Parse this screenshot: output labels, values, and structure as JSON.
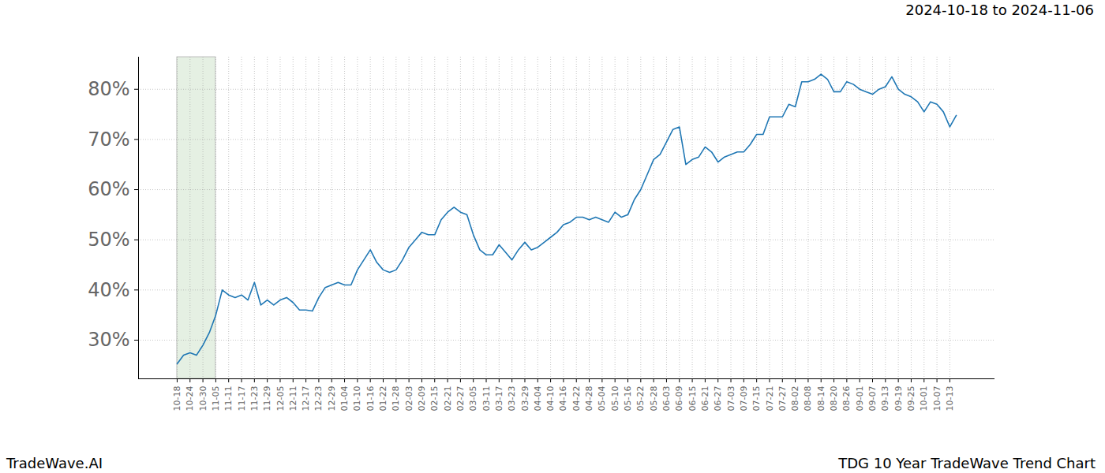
{
  "chart_data": {
    "type": "line",
    "title": "2024-10-18 to 2024-11-06",
    "footer_left": "TradeWave.AI",
    "footer_right": "TDG 10 Year TradeWave Trend Chart",
    "categories": [
      "10-18",
      null,
      "10-24",
      null,
      "10-30",
      null,
      "11-05",
      null,
      "11-11",
      null,
      "11-17",
      null,
      "11-23",
      null,
      "11-29",
      null,
      "12-05",
      null,
      "12-11",
      null,
      "12-17",
      null,
      "12-23",
      null,
      "12-29",
      null,
      "01-04",
      null,
      "01-10",
      null,
      "01-16",
      null,
      "01-22",
      null,
      "01-28",
      null,
      "02-03",
      null,
      "02-09",
      null,
      "02-15",
      null,
      "02-21",
      null,
      "02-27",
      null,
      "03-05",
      null,
      "03-11",
      null,
      "03-17",
      null,
      "03-23",
      null,
      "03-29",
      null,
      "04-04",
      null,
      "04-10",
      null,
      "04-16",
      null,
      "04-22",
      null,
      "04-28",
      null,
      "05-04",
      null,
      "05-10",
      null,
      "05-16",
      null,
      "05-22",
      null,
      "05-28",
      null,
      "06-03",
      null,
      "06-09",
      null,
      "06-15",
      null,
      "06-21",
      null,
      "06-27",
      null,
      "07-03",
      null,
      "07-09",
      null,
      "07-15",
      null,
      "07-21",
      null,
      "07-27",
      null,
      "08-02",
      null,
      "08-08",
      null,
      "08-14",
      null,
      "08-20",
      null,
      "08-26",
      null,
      "09-01",
      null,
      "09-07",
      null,
      "09-13",
      null,
      "09-19",
      null,
      "09-25",
      null,
      "10-01",
      null,
      "10-07",
      null,
      "10-13",
      null
    ],
    "values": [
      25.3,
      27,
      27.5,
      27,
      29,
      31.5,
      35,
      40,
      39,
      38.5,
      39,
      38,
      41.5,
      37,
      38,
      37,
      38,
      38.5,
      37.5,
      36,
      36,
      35.8,
      38.5,
      40.5,
      41,
      41.5,
      41,
      41,
      44,
      46,
      48,
      45.5,
      44,
      43.5,
      44,
      46,
      48.5,
      50,
      51.5,
      51,
      51,
      54,
      55.5,
      56.5,
      55.5,
      55,
      51,
      48,
      47,
      47,
      49,
      47.5,
      46,
      48,
      49.5,
      48,
      48.5,
      49.5,
      50.5,
      51.5,
      53,
      53.5,
      54.5,
      54.5,
      54,
      54.5,
      54,
      53.5,
      55.5,
      54.5,
      55,
      58,
      60,
      63,
      66,
      67,
      69.5,
      72,
      72.5,
      65,
      66,
      66.5,
      68.5,
      67.5,
      65.5,
      66.5,
      67,
      67.5,
      67.5,
      69,
      71,
      71,
      74.5,
      74.5,
      74.5,
      77,
      76.5,
      81.5,
      81.5,
      82,
      83,
      82,
      79.5,
      79.5,
      81.5,
      81,
      80,
      79.5,
      79,
      80,
      80.5,
      82.5,
      80,
      79,
      78.5,
      77.5,
      75.5,
      77.5,
      77,
      75.5,
      72.5,
      74.8
    ],
    "color": "#1f77b4",
    "highlight_range": [
      "10-18",
      "11-05"
    ],
    "highlight_color": "#e5f0e3",
    "ylim": [
      22.3,
      86.4
    ],
    "yticks": [
      {
        "value": 30,
        "label": "30%"
      },
      {
        "value": 40,
        "label": "40%"
      },
      {
        "value": 50,
        "label": "50%"
      },
      {
        "value": 60,
        "label": "60%"
      },
      {
        "value": 70,
        "label": "70%"
      },
      {
        "value": 80,
        "label": "80%"
      }
    ],
    "grid": true
  }
}
